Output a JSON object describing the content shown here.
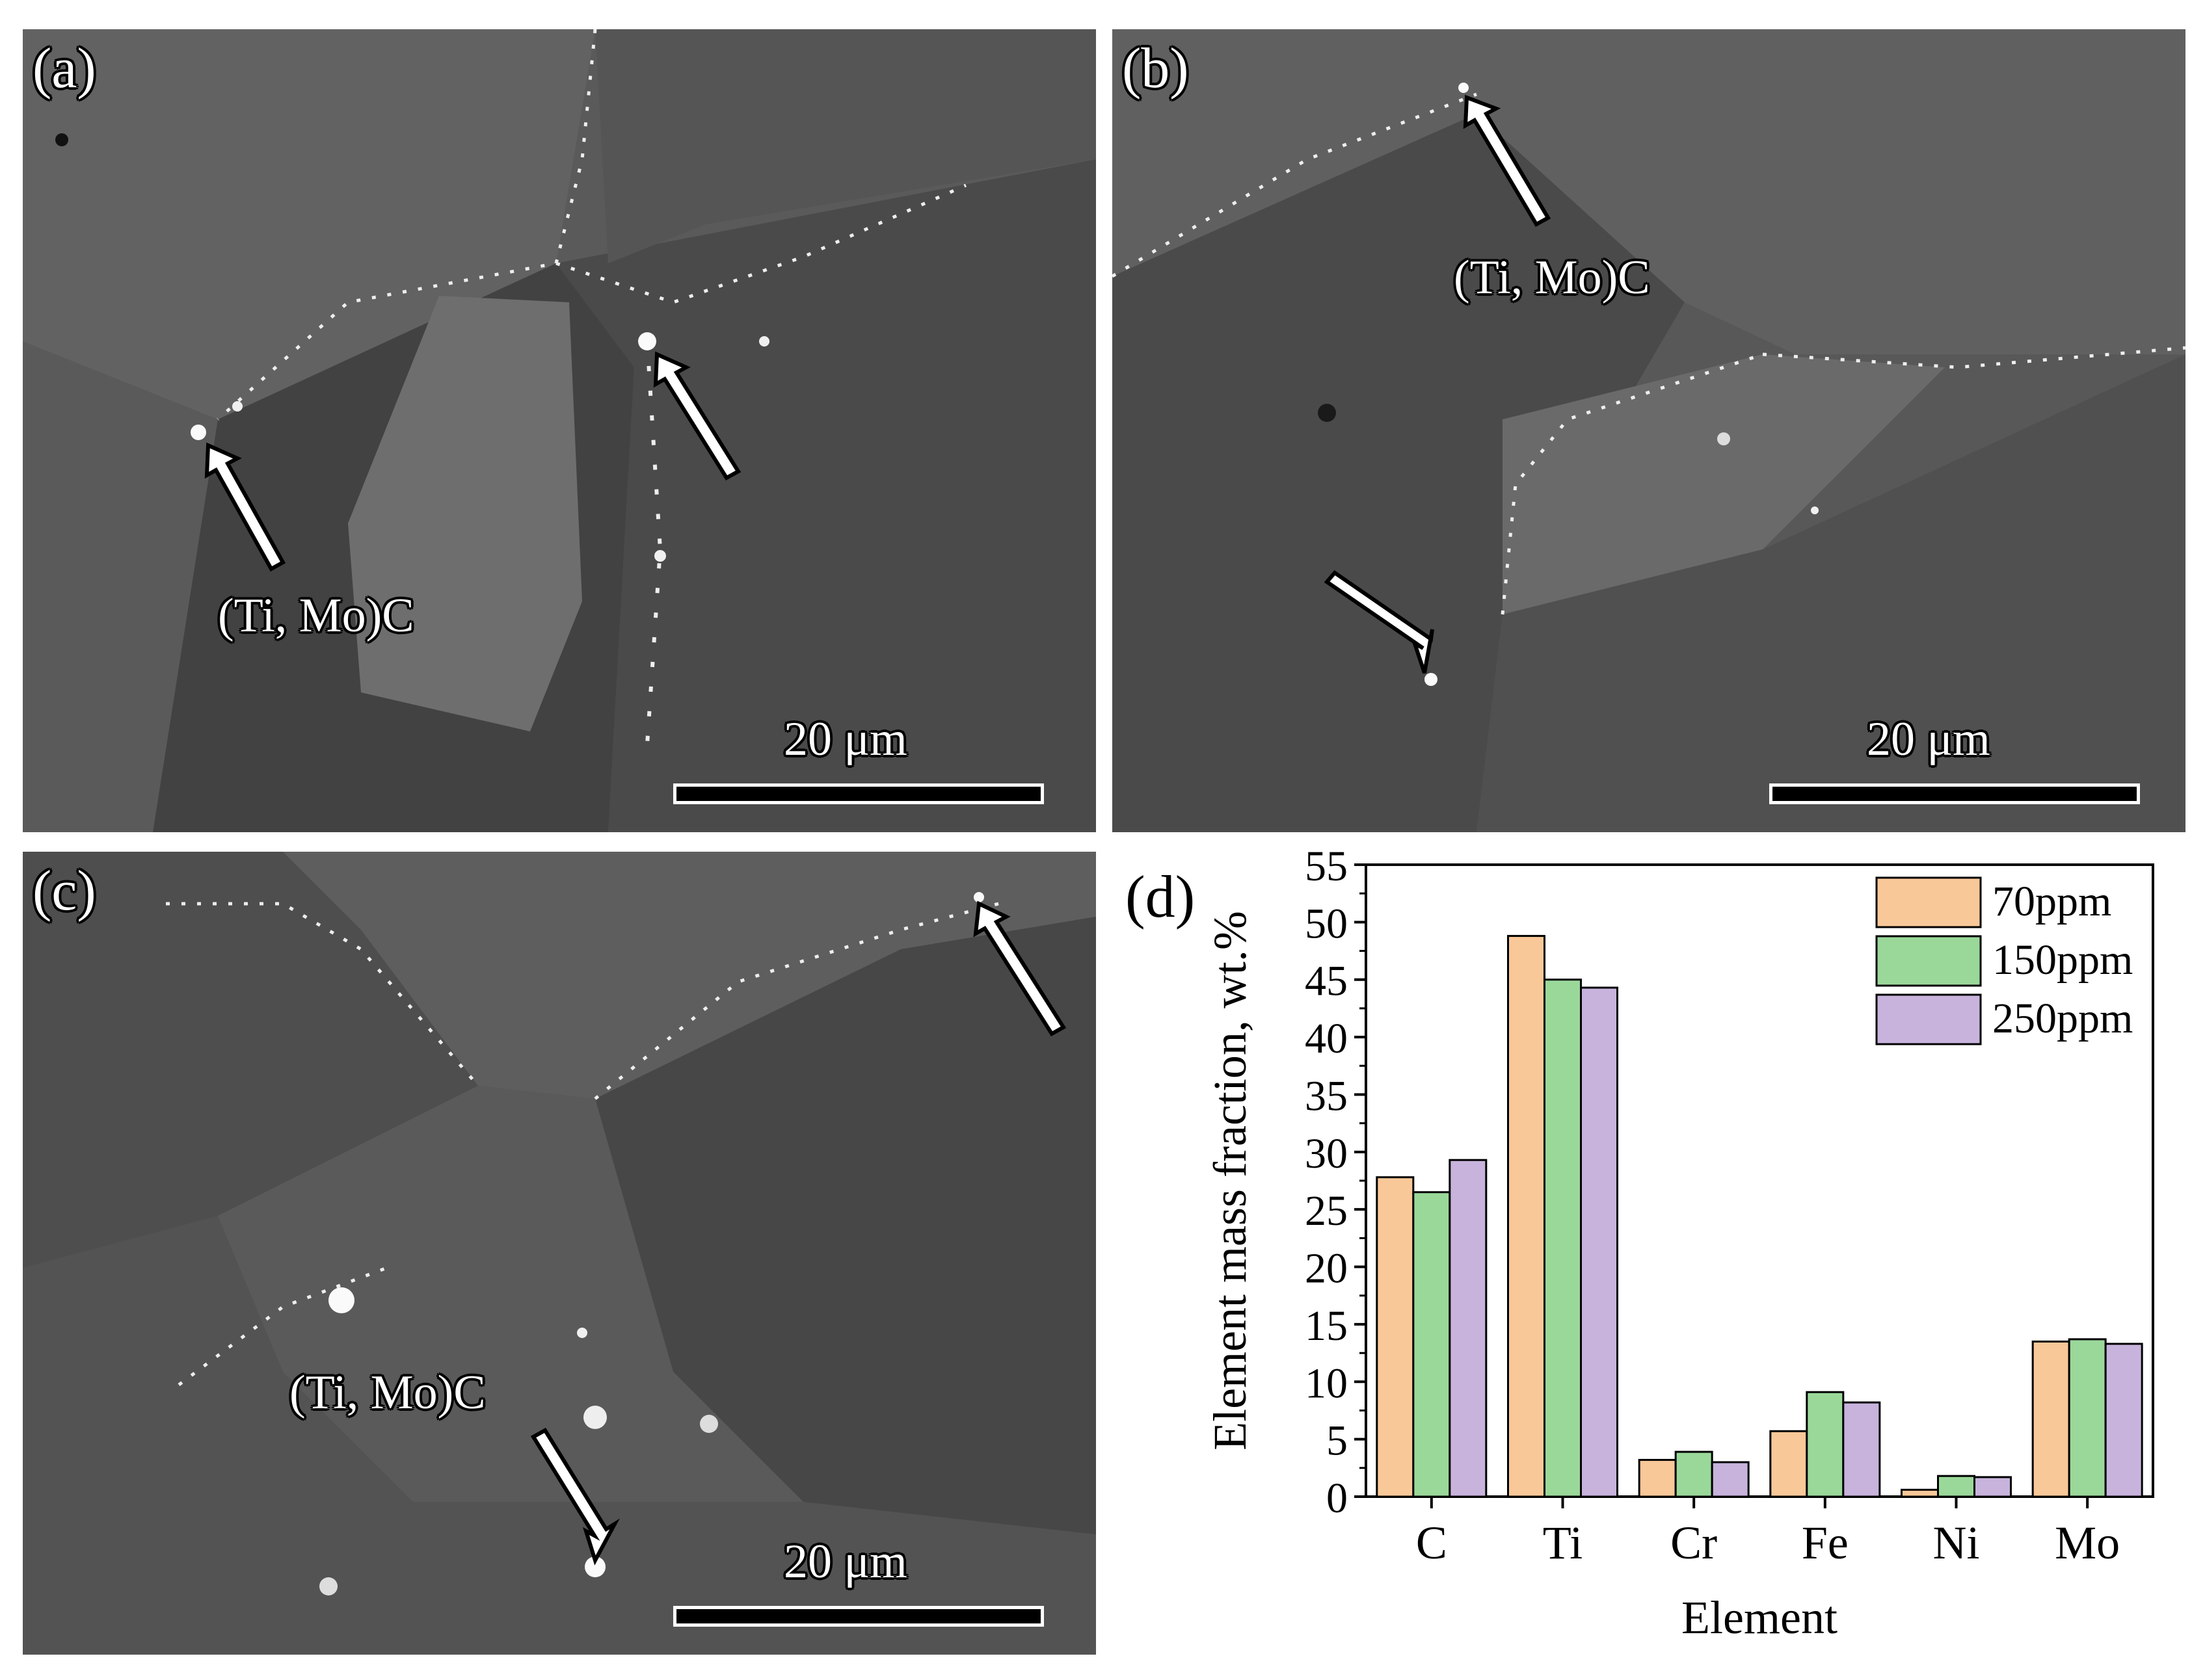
{
  "panels": [
    {
      "label": "(a)",
      "annotation": "(Ti, Mo)C",
      "scale_text": "20 μm"
    },
    {
      "label": "(b)",
      "annotation": "(Ti, Mo)C",
      "scale_text": "20 μm"
    },
    {
      "label": "(c)",
      "annotation": "(Ti, Mo)C",
      "scale_text": "20 μm"
    }
  ],
  "chart_label": "(d)",
  "colors": {
    "70ppm": "#f9c898",
    "150ppm": "#9ad89a",
    "250ppm": "#c7b3dc",
    "bar_stroke": "#000000"
  },
  "chart_data": {
    "type": "bar",
    "categories": [
      "C",
      "Ti",
      "Cr",
      "Fe",
      "Ni",
      "Mo"
    ],
    "series": [
      {
        "name": "70ppm",
        "values": [
          27.8,
          48.8,
          3.2,
          5.7,
          0.6,
          13.5
        ]
      },
      {
        "name": "150ppm",
        "values": [
          26.5,
          45.0,
          3.9,
          9.1,
          1.8,
          13.7
        ]
      },
      {
        "name": "250ppm",
        "values": [
          29.3,
          44.3,
          3.0,
          8.2,
          1.7,
          13.3
        ]
      }
    ],
    "xlabel": "Element",
    "ylabel": "Element mass fraction, wt.%",
    "ylim": [
      0,
      55
    ],
    "yticks": [
      "0",
      "5",
      "10",
      "15",
      "20",
      "25",
      "30",
      "35",
      "40",
      "45",
      "50",
      "55"
    ],
    "legend_position": "top-right",
    "grid": false
  }
}
